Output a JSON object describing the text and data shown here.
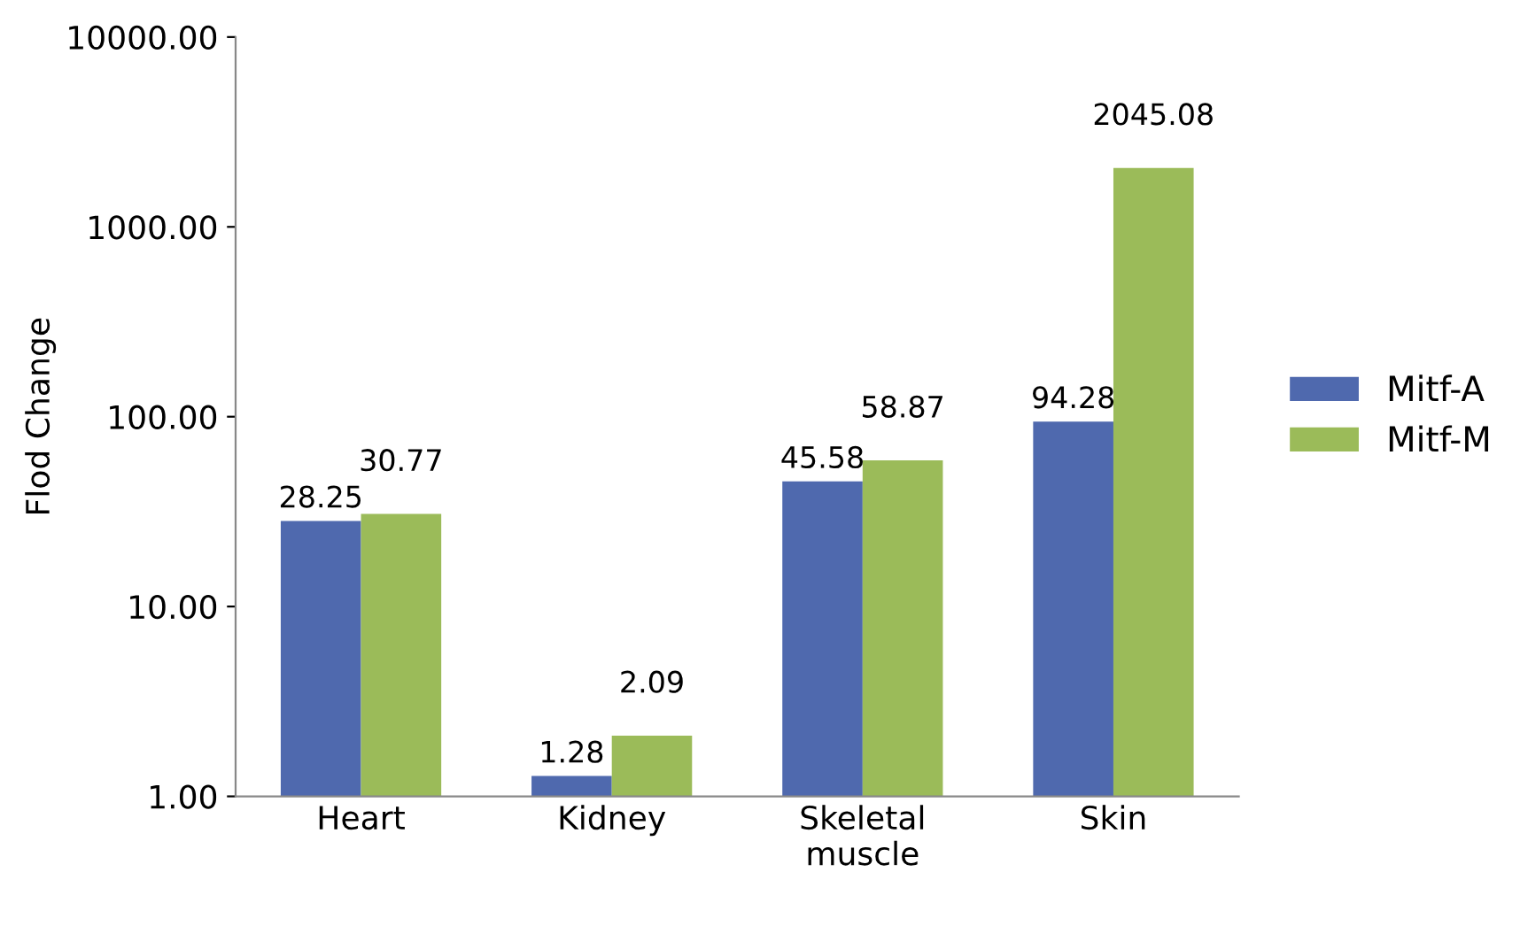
{
  "chart_data": {
    "type": "bar",
    "ylabel": "Flod Change",
    "categories": [
      "Heart",
      "Kidney",
      "Skeletal\nmuscle",
      "Skin"
    ],
    "series": [
      {
        "name": "Mitf-A",
        "color": "#4f69ae",
        "values": [
          28.25,
          1.28,
          45.58,
          94.28
        ]
      },
      {
        "name": "Mitf-M",
        "color": "#9bbb59",
        "values": [
          30.77,
          2.09,
          58.87,
          2045.08
        ]
      }
    ],
    "log": "y",
    "ylim": [
      1,
      10000
    ],
    "yticks": [
      {
        "value": 1,
        "label": "1.00"
      },
      {
        "value": 10,
        "label": "10.00"
      },
      {
        "value": 100,
        "label": "100.00"
      },
      {
        "value": 1000,
        "label": "1000.00"
      },
      {
        "value": 10000,
        "label": "10000.00"
      }
    ],
    "data_labels": true,
    "legend": "right",
    "grid": false
  }
}
